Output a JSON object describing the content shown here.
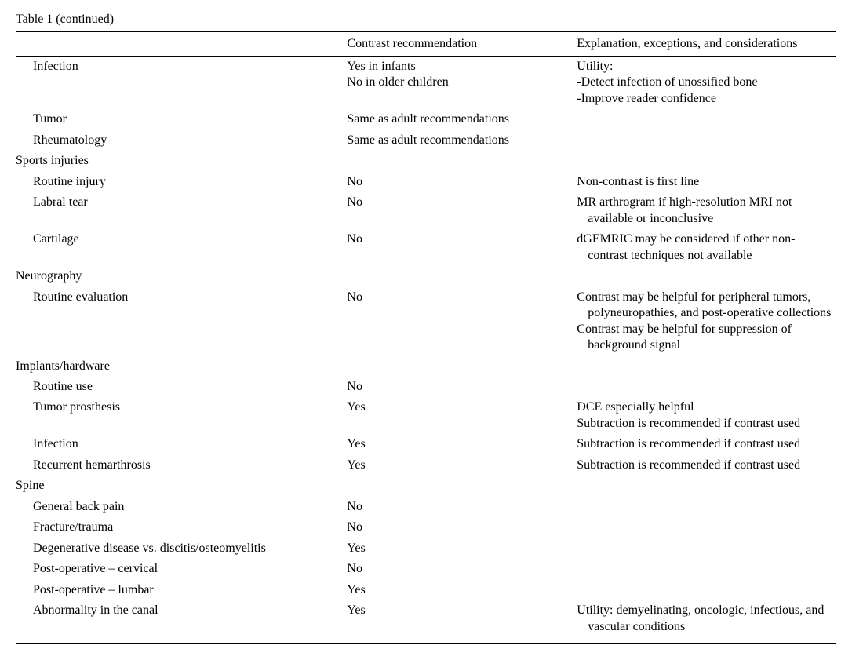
{
  "title": "Table 1  (continued)",
  "headers": {
    "col1": "",
    "col2": "Contrast recommendation",
    "col3": "Explanation, exceptions, and considerations"
  },
  "rows": [
    {
      "type": "item",
      "label": "Infection",
      "rec": [
        "Yes in infants",
        "No in older children"
      ],
      "expl": [
        "Utility:",
        "-Detect infection of unossified bone",
        "-Improve reader confidence"
      ]
    },
    {
      "type": "item",
      "label": "Tumor",
      "rec": [
        "Same as adult recommendations"
      ],
      "expl": []
    },
    {
      "type": "item",
      "label": "Rheumatology",
      "rec": [
        "Same as adult recommendations"
      ],
      "expl": []
    },
    {
      "type": "category",
      "label": "Sports injuries"
    },
    {
      "type": "item",
      "label": "Routine injury",
      "rec": [
        "No"
      ],
      "expl": [
        "Non-contrast is first line"
      ]
    },
    {
      "type": "item",
      "label": "Labral tear",
      "rec": [
        "No"
      ],
      "expl": [
        "MR arthrogram if high-resolution MRI not available or inconclusive"
      ]
    },
    {
      "type": "item",
      "label": "Cartilage",
      "rec": [
        "No"
      ],
      "expl": [
        "dGEMRIC may be considered if other non-contrast techniques not available"
      ]
    },
    {
      "type": "category",
      "label": "Neurography"
    },
    {
      "type": "item",
      "label": "Routine evaluation",
      "rec": [
        "No"
      ],
      "expl": [
        "Contrast may be helpful for peripheral tumors, polyneuropathies, and post-operative collections",
        "Contrast may be helpful for suppression of background signal"
      ]
    },
    {
      "type": "category",
      "label": "Implants/hardware"
    },
    {
      "type": "item",
      "label": "Routine use",
      "rec": [
        "No"
      ],
      "expl": []
    },
    {
      "type": "item",
      "label": "Tumor prosthesis",
      "rec": [
        "Yes"
      ],
      "expl": [
        "DCE especially helpful",
        "Subtraction is recommended if contrast used"
      ]
    },
    {
      "type": "item",
      "label": "Infection",
      "rec": [
        "Yes"
      ],
      "expl": [
        "Subtraction is recommended if contrast used"
      ]
    },
    {
      "type": "item",
      "label": "Recurrent hemarthrosis",
      "rec": [
        "Yes"
      ],
      "expl": [
        "Subtraction is recommended if contrast used"
      ]
    },
    {
      "type": "category",
      "label": "Spine"
    },
    {
      "type": "item",
      "label": "General back pain",
      "rec": [
        "No"
      ],
      "expl": []
    },
    {
      "type": "item",
      "label": "Fracture/trauma",
      "rec": [
        "No"
      ],
      "expl": []
    },
    {
      "type": "item",
      "label": "Degenerative disease vs. discitis/osteomyelitis",
      "rec": [
        "Yes"
      ],
      "expl": []
    },
    {
      "type": "item",
      "label": "Post-operative – cervical",
      "rec": [
        "No"
      ],
      "expl": []
    },
    {
      "type": "item",
      "label": "Post-operative – lumbar",
      "rec": [
        "Yes"
      ],
      "expl": []
    },
    {
      "type": "item",
      "label": "Abnormality in the canal",
      "rec": [
        "Yes"
      ],
      "expl": [
        "Utility: demyelinating, oncologic, infectious, and vascular conditions"
      ]
    }
  ]
}
